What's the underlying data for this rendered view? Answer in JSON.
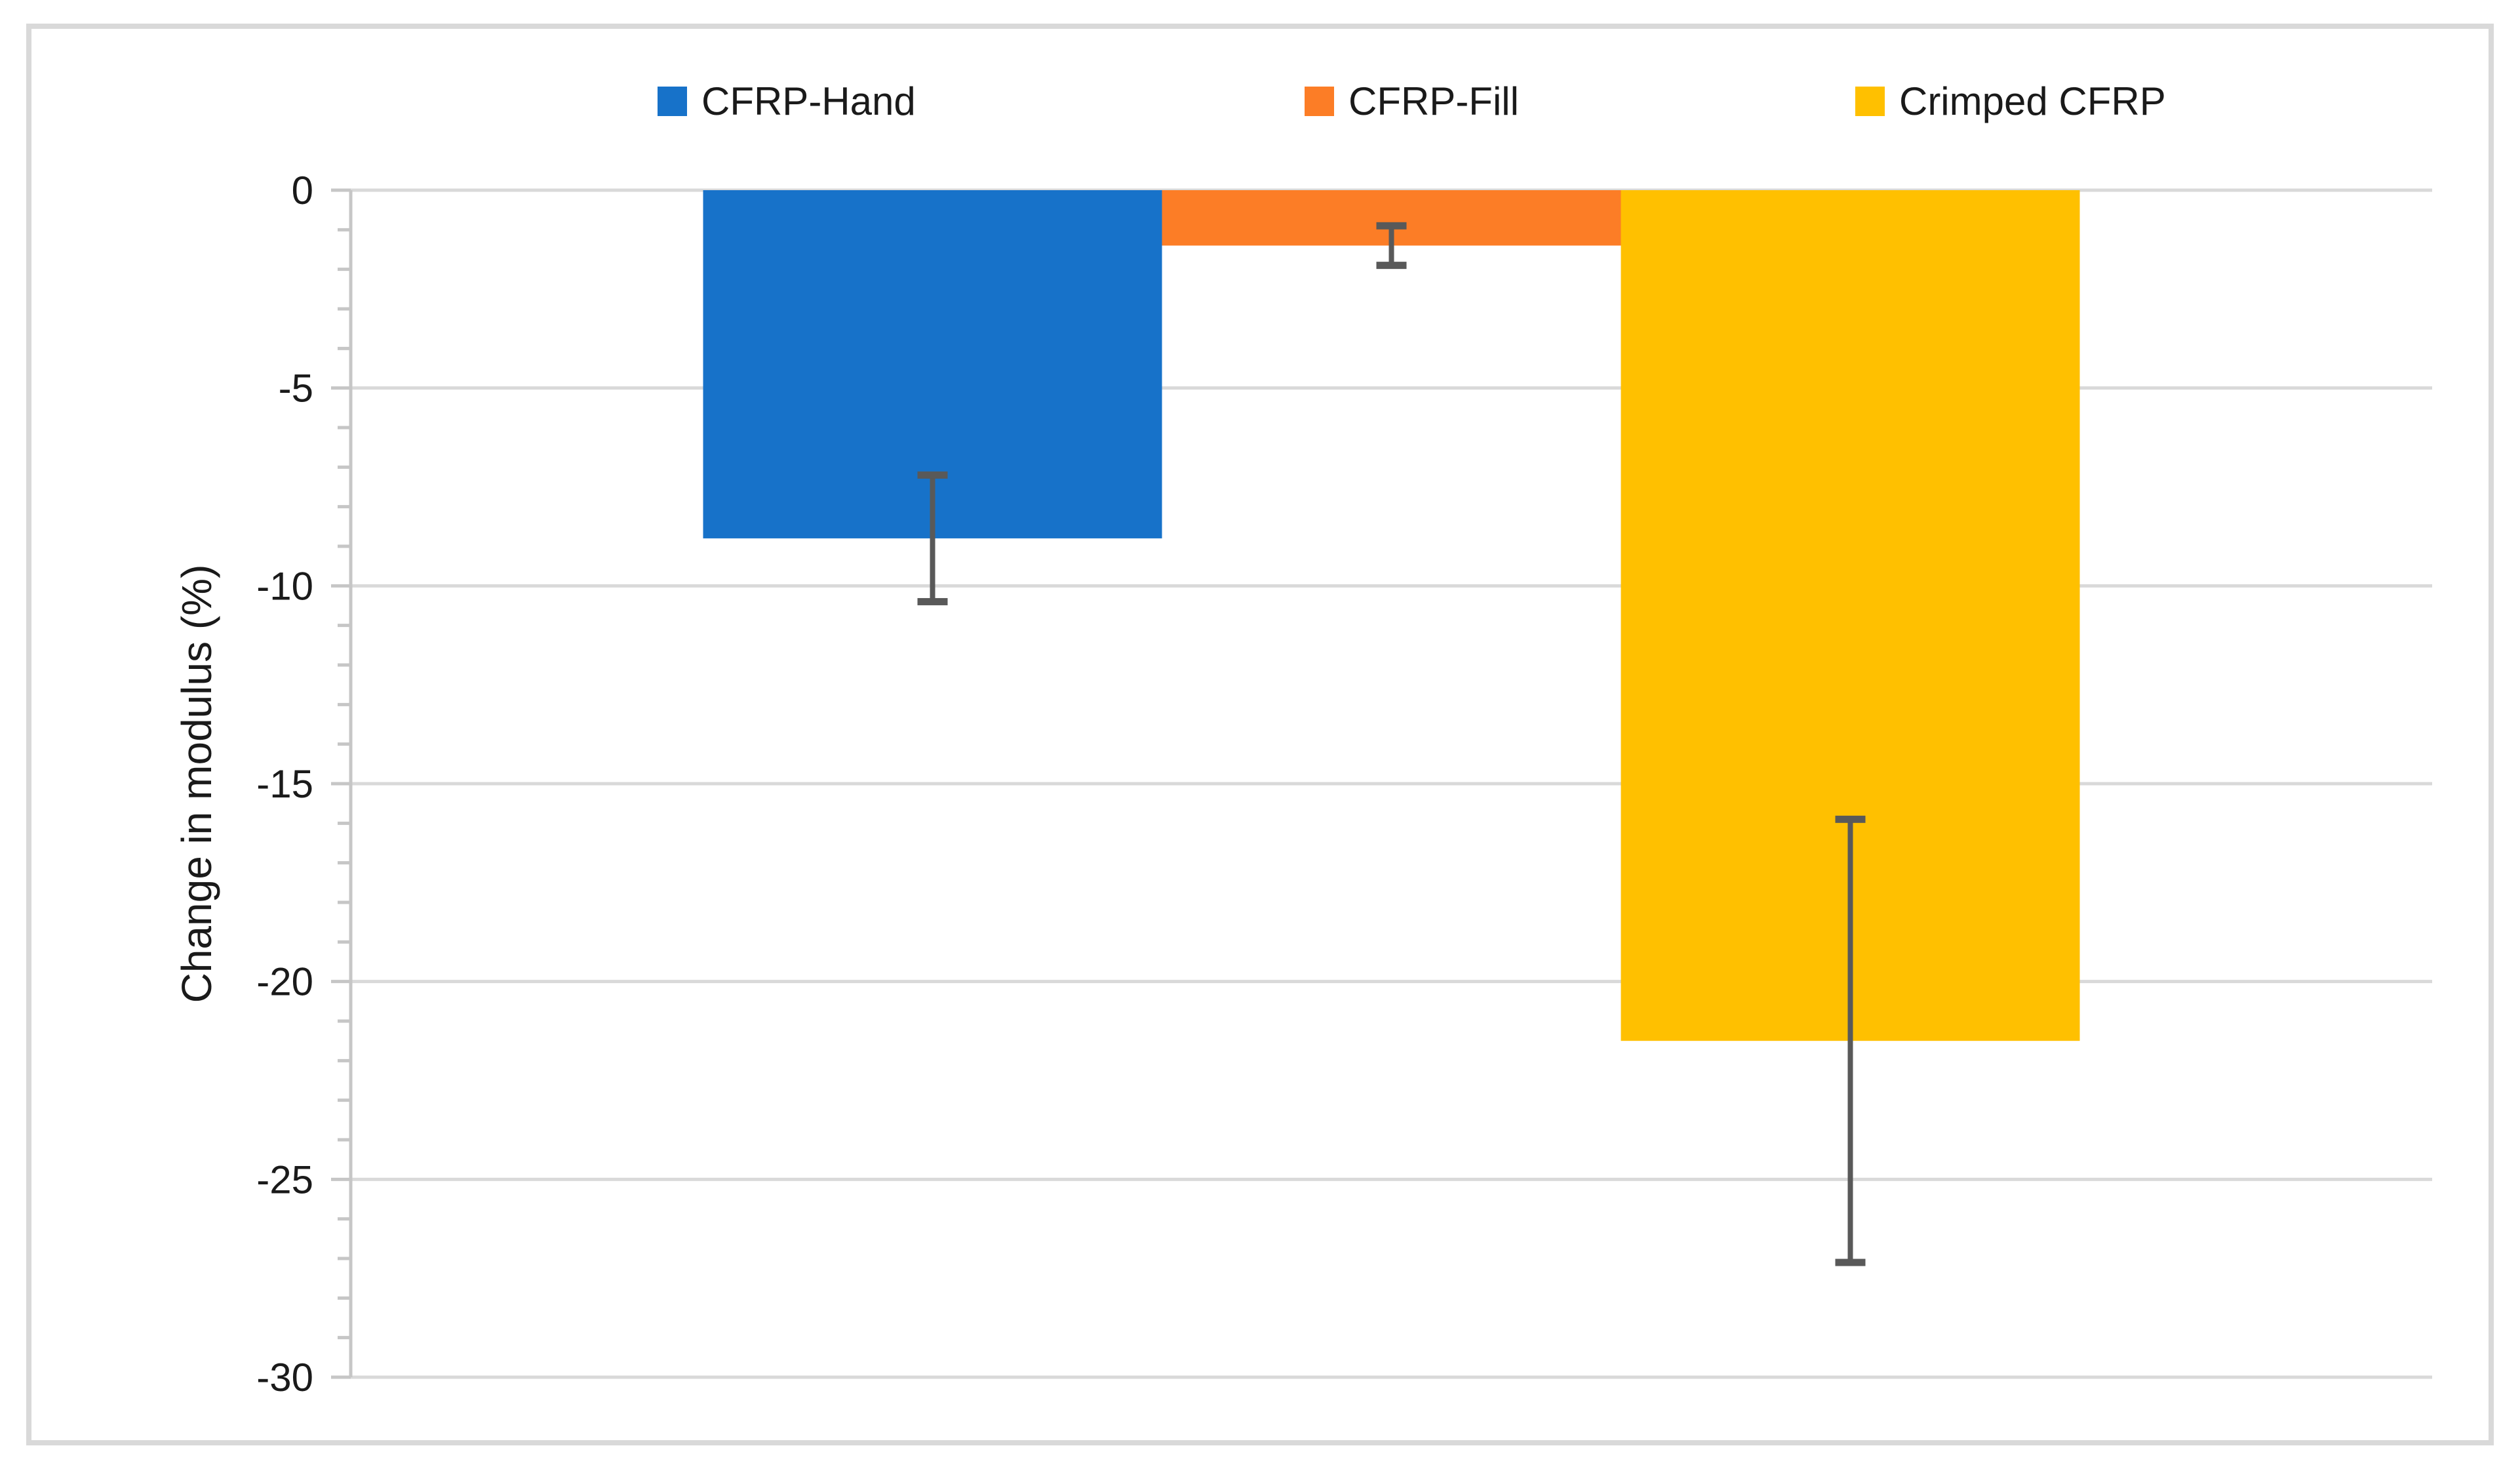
{
  "figure": {
    "background": "#FFFFFF"
  },
  "chart_data": {
    "type": "bar",
    "title": "",
    "xlabel": "",
    "ylabel": "Change in modulus (%)",
    "ylim": [
      -30,
      0
    ],
    "ytick_major_step": 5,
    "ytick_minor_step": 1,
    "ytick_labels": [
      "0",
      "-5",
      "-10",
      "-15",
      "-20",
      "-25",
      "-30"
    ],
    "grid": "horizontal-major",
    "legend_position": "top",
    "series": [
      {
        "name": "CFRP-Hand",
        "value": -8.8,
        "error": 1.6,
        "color": "#1772C9"
      },
      {
        "name": "CFRP-Fill",
        "value": -1.4,
        "error": 0.5,
        "color": "#FC7D26"
      },
      {
        "name": "Crimped CFRP",
        "value": -21.5,
        "error": 5.6,
        "color": "#FFC000"
      }
    ]
  },
  "colors": {
    "gridline": "#D9D9D9",
    "axis_line": "#C6C6C6",
    "tick": "#C6C6C6",
    "error_bar": "#595959",
    "text": "#1A1A1A",
    "frame_border": "#D9D9D9"
  }
}
